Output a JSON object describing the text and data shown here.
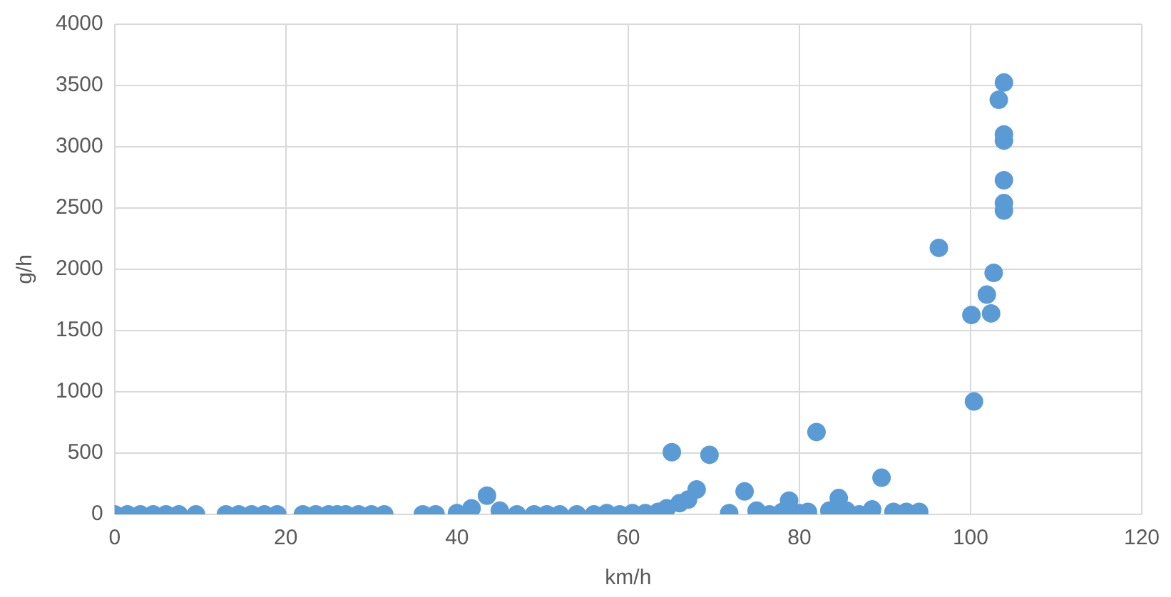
{
  "chart_data": {
    "type": "scatter",
    "xlabel": "km/h",
    "ylabel": "g/h",
    "x": [
      0,
      1.5,
      3,
      4.5,
      6,
      7.5,
      9.5,
      13,
      14.5,
      16,
      17.5,
      19,
      22,
      23.5,
      25,
      26,
      27,
      28.5,
      30,
      31.5,
      36,
      37.5,
      40,
      41.7,
      43.5,
      45,
      47,
      49,
      50.5,
      52,
      54,
      56,
      57.5,
      59,
      60.5,
      62,
      63.5,
      64.5,
      65.1,
      66,
      67,
      68,
      69.5,
      71.8,
      73.6,
      75,
      76.5,
      78,
      78.8,
      80,
      81,
      82,
      83.5,
      84.6,
      85.5,
      87,
      88.5,
      89.6,
      91,
      92.5,
      94,
      96.3,
      100.1,
      100.4,
      101.9,
      102.4,
      102.7,
      103.3,
      103.9,
      103.9,
      103.9,
      103.9,
      103.9,
      103.9
    ],
    "values": [
      0,
      0,
      0,
      0,
      0,
      0,
      0,
      0,
      0,
      0,
      0,
      0,
      0,
      0,
      0,
      0,
      0,
      0,
      0,
      0,
      0,
      0,
      10,
      50,
      153,
      30,
      0,
      0,
      0,
      0,
      0,
      0,
      10,
      0,
      10,
      10,
      20,
      50,
      507,
      91,
      120,
      203,
      486,
      10,
      187,
      30,
      0,
      20,
      112,
      10,
      20,
      672,
      30,
      133,
      30,
      0,
      40,
      299,
      20,
      20,
      20,
      2175,
      1627,
      921,
      1793,
      1640,
      1971,
      3383,
      3524,
      3100,
      3050,
      2727,
      2540,
      2480
    ],
    "color": "#5b9bd5",
    "marker": "circle",
    "grid": true,
    "xlim": [
      0,
      120
    ],
    "xticks": [
      0,
      20,
      40,
      60,
      80,
      100,
      120
    ],
    "ylim": [
      0,
      4000
    ],
    "yticks": [
      0,
      500,
      1000,
      1500,
      2000,
      2500,
      3000,
      3500,
      4000
    ]
  }
}
